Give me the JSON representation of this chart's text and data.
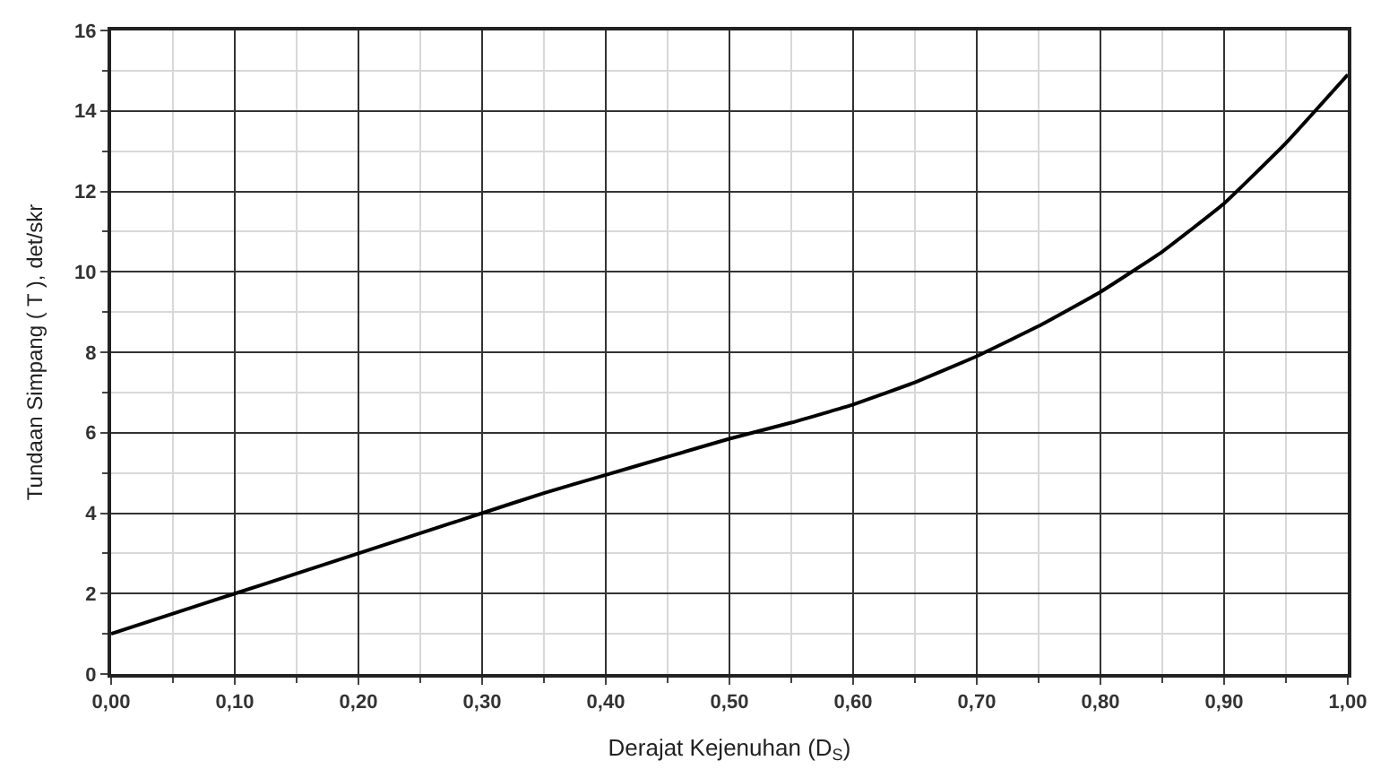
{
  "chart_data": {
    "type": "line",
    "xlabel": "Derajat Kejenuhan (D$_{S}$)",
    "ylabel": "Tundaan Simpang ( T ), det/skr",
    "x": [
      0,
      0.05,
      0.1,
      0.15,
      0.2,
      0.25,
      0.3,
      0.35,
      0.4,
      0.45,
      0.5,
      0.55,
      0.6,
      0.65,
      0.7,
      0.75,
      0.8,
      0.85,
      0.9,
      0.95,
      1.0
    ],
    "series": [
      {
        "color": "#000000",
        "values": [
          1.0,
          1.5,
          2.0,
          2.5,
          3.0,
          3.5,
          4.0,
          4.5,
          4.95,
          5.4,
          5.85,
          6.25,
          6.7,
          7.25,
          7.9,
          8.65,
          9.5,
          10.5,
          11.7,
          13.2,
          14.9
        ]
      }
    ],
    "xlim": [
      0,
      1
    ],
    "ylim": [
      0,
      16
    ],
    "xticks": [
      {
        "value": 0,
        "label": "0,00"
      },
      {
        "value": 0.1,
        "label": "0,10"
      },
      {
        "value": 0.2,
        "label": "0,20"
      },
      {
        "value": 0.3,
        "label": "0,30"
      },
      {
        "value": 0.4,
        "label": "0,40"
      },
      {
        "value": 0.5,
        "label": "0,50"
      },
      {
        "value": 0.6,
        "label": "0,60"
      },
      {
        "value": 0.7,
        "label": "0,70"
      },
      {
        "value": 0.8,
        "label": "0,80"
      },
      {
        "value": 0.9,
        "label": "0,90"
      },
      {
        "value": 1.0,
        "label": "1,00"
      }
    ],
    "yticks": [
      0,
      2,
      4,
      6,
      8,
      10,
      12,
      14,
      16
    ],
    "grid": true,
    "marker": "none",
    "line_style": "solid"
  }
}
